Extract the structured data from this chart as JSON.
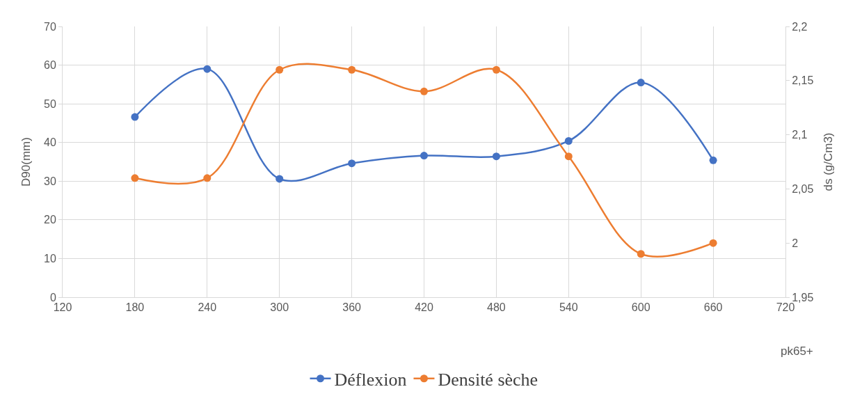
{
  "chart_data": {
    "type": "line",
    "xlabel": "pk65+",
    "ylabel": "D90(mm)",
    "y2label": "ds (g/Cm3)",
    "x": [
      180,
      240,
      300,
      360,
      420,
      480,
      540,
      600,
      660
    ],
    "series": [
      {
        "name": "Déflexion",
        "color": "#4472c4",
        "values": [
          46.6,
          59,
          30.6,
          34.6,
          36.6,
          36.4,
          40.4,
          55.5,
          35.4
        ]
      },
      {
        "name": "Densité sèche",
        "color": "#ed7d31",
        "axis": "y2",
        "values": [
          2.06,
          2.06,
          2.16,
          2.16,
          2.14,
          2.16,
          2.08,
          1.99,
          2.0
        ]
      }
    ],
    "xlim": [
      120,
      720
    ],
    "xticks": [
      120,
      180,
      240,
      300,
      360,
      420,
      480,
      540,
      600,
      660,
      720
    ],
    "ylim": [
      0,
      70
    ],
    "yticks": [
      0,
      10,
      20,
      30,
      40,
      50,
      60,
      70
    ],
    "y2lim": [
      1.95,
      2.2
    ],
    "y2ticks": [
      {
        "value": 1.95,
        "label": "1,95"
      },
      {
        "value": 2,
        "label": "2"
      },
      {
        "value": 2.05,
        "label": "2,05"
      },
      {
        "value": 2.1,
        "label": "2,1"
      },
      {
        "value": 2.15,
        "label": "2,15"
      },
      {
        "value": 2.2,
        "label": "2,2"
      }
    ],
    "grid": true,
    "legend": "bottom",
    "marker": "circle",
    "line_style": "solid"
  }
}
